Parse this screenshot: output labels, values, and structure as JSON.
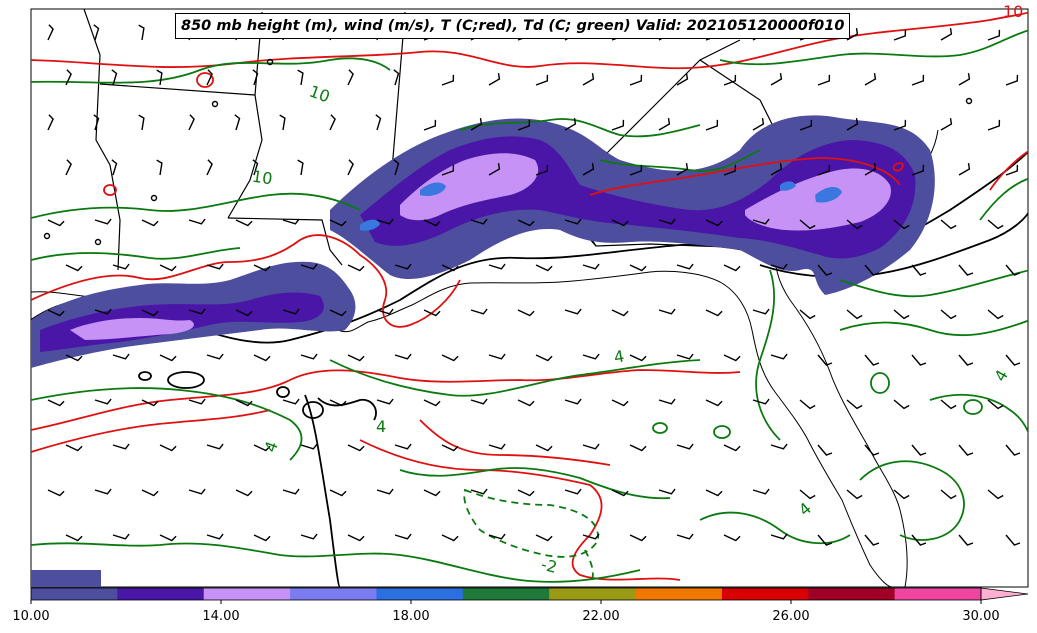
{
  "title": "850 mb height (m), wind (m/s), T (C;red), Td (C; green) Valid: 202105120000f010",
  "colorbar": {
    "ticks": [
      "10.00",
      "14.00",
      "18.00",
      "22.00",
      "26.00",
      "30.00"
    ],
    "colors": [
      "#4e4e9e",
      "#4a16a8",
      "#c792f5",
      "#7a7cf0",
      "#2b6fe0",
      "#1f7a3a",
      "#9a9a14",
      "#f07800",
      "#d80000",
      "#a00026",
      "#f045a0",
      "#ffb0d0"
    ]
  },
  "contour_labels": {
    "temperature": [
      "10"
    ],
    "dewpoint": [
      "10",
      "10",
      "4",
      "4",
      "4",
      "4",
      "4",
      "-2"
    ]
  },
  "colors": {
    "temperature": "#e01010",
    "dewpoint": "#0a7a10",
    "height": "#000000",
    "precip_light": "#4e4e9e",
    "precip_mid": "#4a16a8",
    "precip_high": "#c792f5",
    "precip_top": "#3a78e0"
  }
}
